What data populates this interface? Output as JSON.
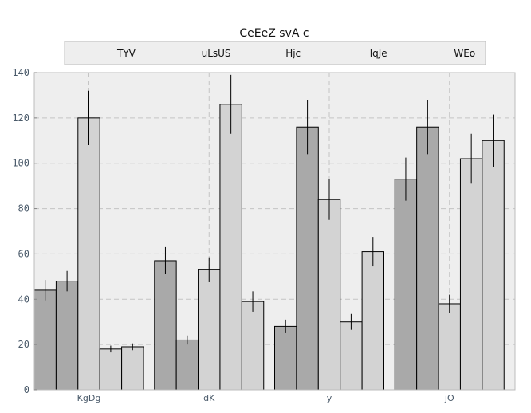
{
  "chart_data": {
    "type": "bar",
    "title": "CeEeZ  svA c",
    "xlabel": "",
    "ylabel": "",
    "categories": [
      "KgDg",
      "dK",
      "y",
      "jO"
    ],
    "ylim": [
      0,
      140
    ],
    "yticks": [
      0,
      20,
      40,
      60,
      80,
      100,
      120,
      140
    ],
    "grid": true,
    "legend_position": "top-center",
    "series": [
      {
        "name": "TYV",
        "color": "#a9a9a9",
        "values": [
          44,
          57,
          28,
          93
        ],
        "errors": [
          4.5,
          6,
          3,
          9.5
        ]
      },
      {
        "name": "uLsUS",
        "color": "#a9a9a9",
        "values": [
          48,
          22,
          116,
          116
        ],
        "errors": [
          4.5,
          2,
          12,
          12
        ]
      },
      {
        "name": "Hjc",
        "color": "#d3d3d3",
        "values": [
          120,
          53,
          84,
          38
        ],
        "errors": [
          12,
          5.5,
          9,
          4
        ]
      },
      {
        "name": "lqJe",
        "color": "#d3d3d3",
        "values": [
          18,
          126,
          30,
          102
        ],
        "errors": [
          1.5,
          13,
          3.5,
          11
        ]
      },
      {
        "name": "WEo",
        "color": "#d3d3d3",
        "values": [
          19,
          39,
          61,
          110
        ],
        "errors": [
          1.5,
          4.5,
          6.5,
          11.5
        ]
      }
    ]
  }
}
